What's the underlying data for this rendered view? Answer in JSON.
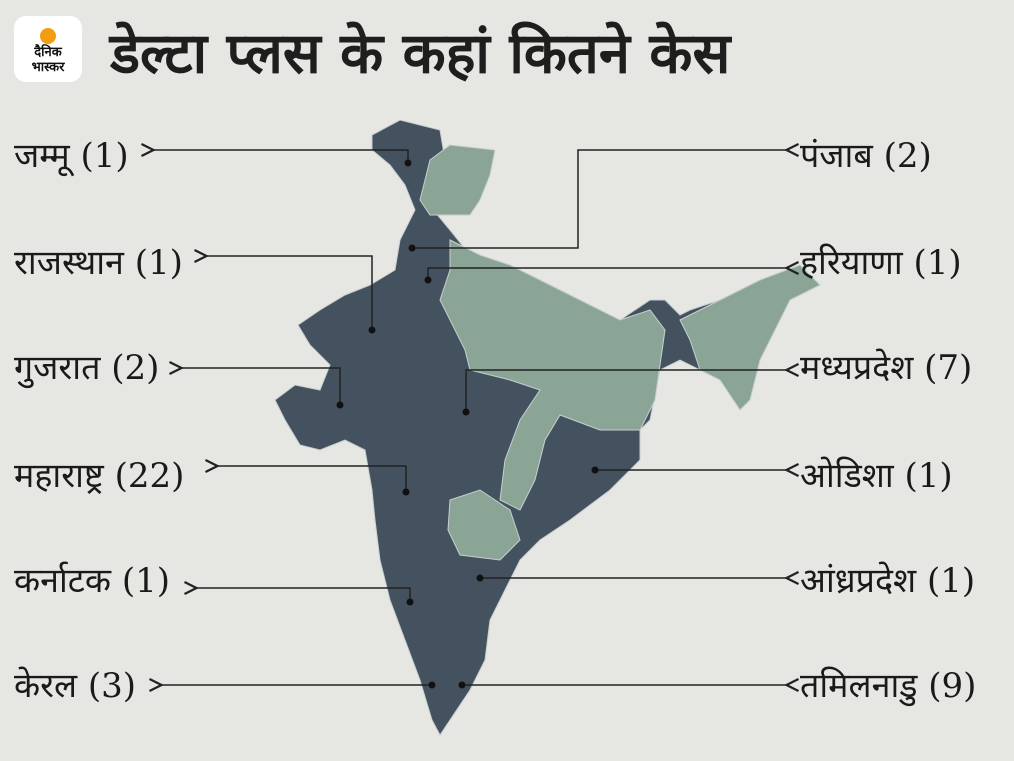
{
  "logo": {
    "line1": "दैनिक",
    "line2": "भास्कर"
  },
  "title": "डेल्टा प्लस के कहां कितने केस",
  "left_labels": [
    "जम्मू (1)",
    "राजस्थान (1)",
    "गुजरात (2)",
    "महाराष्ट्र (22)",
    "कर्नाटक (1)",
    "केरल (3)"
  ],
  "right_labels": [
    "पंजाब (2)",
    "हरियाणा (1)",
    "मध्यप्रदेश (7)",
    "ओडिशा (1)",
    "आंध्रप्रदेश (1)",
    "तमिलनाडु (9)"
  ]
}
